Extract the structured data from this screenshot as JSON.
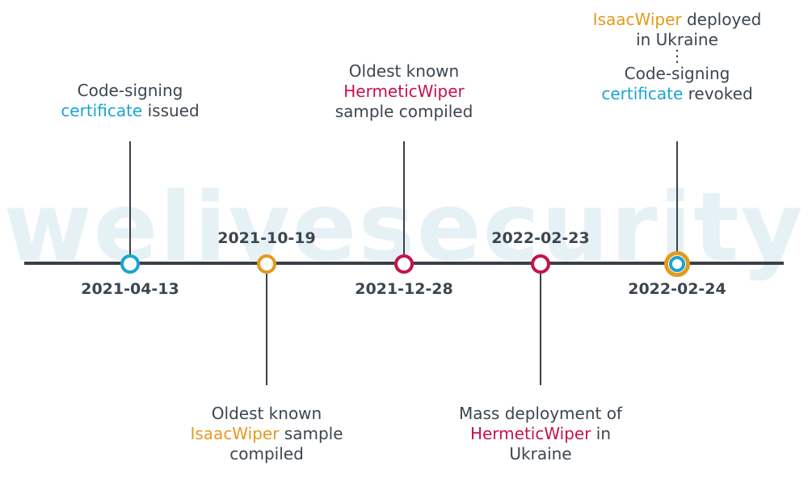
{
  "watermark": "welivesecurity",
  "colors": {
    "axis": "#3b4048",
    "text": "#3c4650",
    "certificate": "#1aa5d2",
    "isaacwiper": "#e39a1d",
    "hermeticwiper": "#c4134c"
  },
  "events": [
    {
      "date": "2021-04-13",
      "label": {
        "line1": "Code-signing",
        "line2_highlight": "certificate",
        "line2_rest": " issued"
      }
    },
    {
      "date": "2021-10-19",
      "label": {
        "line1": "Oldest known",
        "line2_highlight": "IsaacWiper",
        "line2_rest": " sample",
        "line3": "compiled"
      }
    },
    {
      "date": "2021-12-28",
      "label": {
        "line1": "Oldest known",
        "line2_highlight": "HermeticWiper",
        "line3": "sample compiled"
      }
    },
    {
      "date": "2022-02-23",
      "label": {
        "line1": "Mass deployment of",
        "line2_highlight": "HermeticWiper",
        "line2_rest": " in",
        "line3": "Ukraine"
      }
    },
    {
      "date": "2022-02-24",
      "label": {
        "line1_highlight": "IsaacWiper",
        "line1_rest": " deployed",
        "line2": "in Ukraine",
        "separator": "⋮",
        "line3": "Code-signing",
        "line4_highlight": "certificate",
        "line4_rest": " revoked"
      }
    }
  ]
}
